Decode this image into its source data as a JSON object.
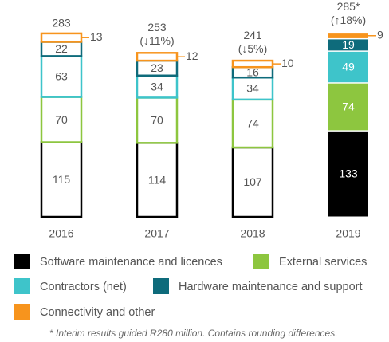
{
  "chart_data": {
    "type": "stacked-bar",
    "categories": [
      "2016",
      "2017",
      "2018",
      "2019"
    ],
    "series": [
      {
        "name": "Software maintenance and licences",
        "color": "#000000",
        "values": [
          115,
          114,
          107,
          133
        ]
      },
      {
        "name": "External services",
        "color": "#8dc63f",
        "values": [
          70,
          70,
          74,
          74
        ]
      },
      {
        "name": "Contractors (net)",
        "color": "#3ec4ca",
        "values": [
          63,
          34,
          34,
          49
        ]
      },
      {
        "name": "Hardware maintenance and support",
        "color": "#0e6b7b",
        "values": [
          22,
          23,
          16,
          19
        ]
      },
      {
        "name": "Connectivity and other",
        "color": "#f7941d",
        "values": [
          13,
          12,
          10,
          9
        ]
      }
    ],
    "totals": [
      283,
      253,
      241,
      285
    ],
    "total_labels": [
      "283",
      "253",
      "241",
      "285*"
    ],
    "changes": [
      null,
      "(↓11%)",
      "(↓5%)",
      "(↑18%)"
    ],
    "outlined": [
      true,
      true,
      true,
      false
    ],
    "footnote": "* Interim results guided R280 million.  Contains rounding differences."
  }
}
